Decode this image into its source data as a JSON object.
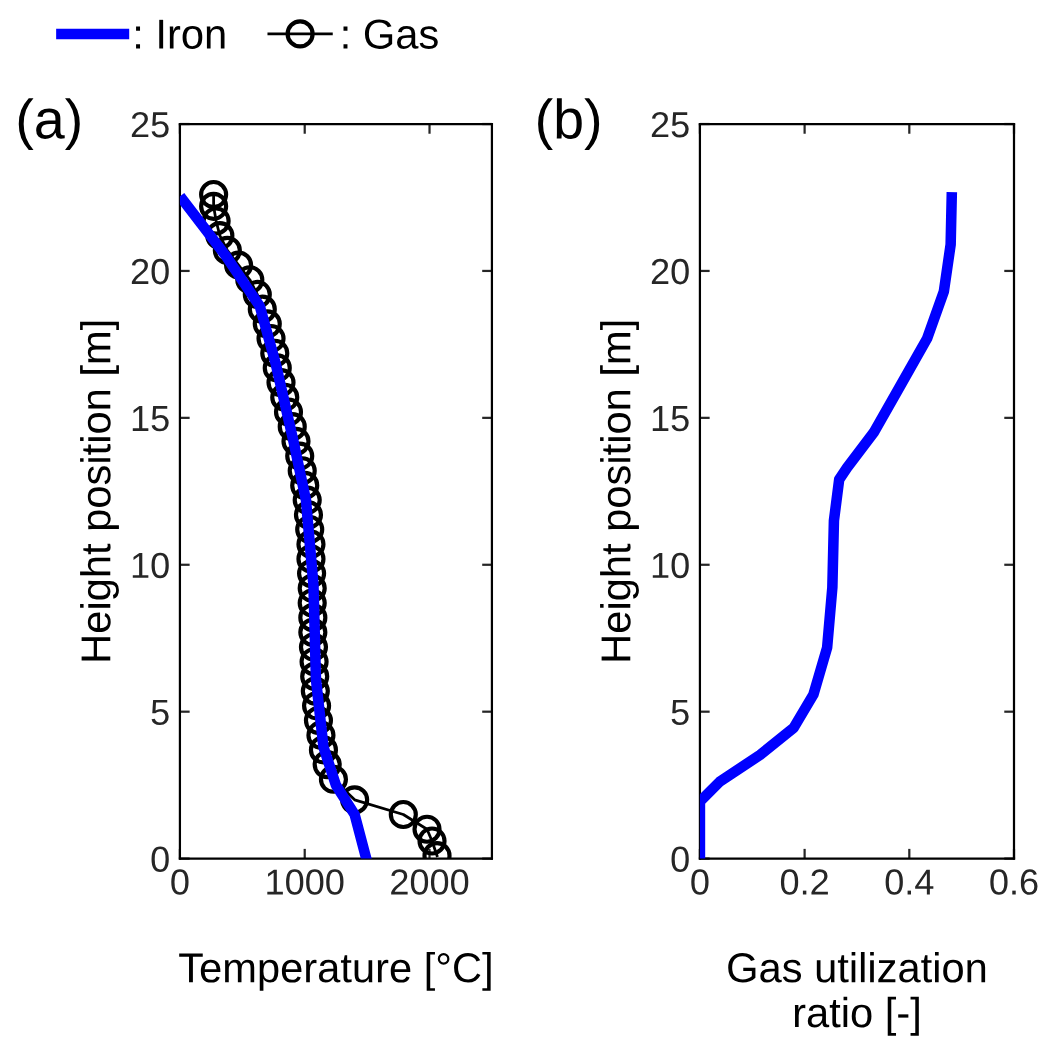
{
  "chart_data": [
    {
      "type": "line",
      "xlabel": "Temperature [°C]",
      "ylabel": "Height position [m]",
      "annotations": [
        "(a)"
      ],
      "xlim": [
        0,
        2500
      ],
      "xticks": [
        0,
        1000,
        2000
      ],
      "ylim": [
        0,
        25
      ],
      "yticks": [
        0,
        5,
        10,
        15,
        20,
        25
      ],
      "grid": false,
      "legend": "top",
      "series": [
        {
          "name": ": Iron",
          "color": "#0000ff",
          "marker": "none",
          "x": [
            27,
            370,
            640,
            770,
            910,
            1010,
            1070,
            1090,
            1150,
            1250,
            1400,
            1490
          ],
          "values": [
            22.4,
            20.5,
            18.8,
            16.8,
            14.2,
            12.2,
            9.3,
            6.1,
            3.8,
            2.5,
            1.5,
            0.05
          ]
        },
        {
          "name": ": Gas",
          "color": "#000000",
          "marker": "circle",
          "x": [
            270,
            270,
            290,
            320,
            380,
            470,
            560,
            620,
            660,
            700,
            730,
            760,
            780,
            810,
            840,
            870,
            900,
            930,
            960,
            980,
            1000,
            1020,
            1030,
            1040,
            1050,
            1050,
            1055,
            1060,
            1060,
            1065,
            1065,
            1070,
            1075,
            1080,
            1085,
            1095,
            1110,
            1130,
            1150,
            1180,
            1230,
            1400,
            1790,
            1980,
            2020,
            2060
          ],
          "values": [
            22.6,
            22.2,
            21.7,
            21.2,
            20.7,
            20.2,
            19.7,
            19.2,
            18.7,
            18.2,
            17.7,
            17.2,
            16.7,
            16.2,
            15.7,
            15.2,
            14.7,
            14.2,
            13.7,
            13.2,
            12.7,
            12.2,
            11.7,
            11.2,
            10.7,
            10.2,
            9.7,
            9.2,
            8.7,
            8.2,
            7.7,
            7.2,
            6.7,
            6.2,
            5.7,
            5.2,
            4.7,
            4.2,
            3.7,
            3.2,
            2.7,
            2.0,
            1.5,
            1.0,
            0.6,
            0.1
          ]
        }
      ]
    },
    {
      "type": "line",
      "xlabel": "Gas utilization\nratio [-]",
      "ylabel": "Height position [m]",
      "annotations": [
        "(b)"
      ],
      "xlim": [
        0,
        0.6
      ],
      "xticks": [
        0,
        0.2,
        0.4,
        0.6
      ],
      "ylim": [
        0,
        25
      ],
      "yticks": [
        0,
        5,
        10,
        15,
        20,
        25
      ],
      "grid": false,
      "series": [
        {
          "color": "#0000ff",
          "marker": "none",
          "x": [
            0,
            0,
            0.038,
            0.115,
            0.179,
            0.217,
            0.243,
            0.253,
            0.256,
            0.266,
            0.281,
            0.332,
            0.383,
            0.434,
            0.466,
            0.479,
            0.481
          ],
          "values": [
            0,
            1.94,
            2.62,
            3.53,
            4.45,
            5.59,
            7.18,
            9.23,
            11.5,
            12.9,
            13.3,
            14.5,
            16.1,
            17.7,
            19.3,
            20.9,
            22.5
          ]
        }
      ]
    }
  ]
}
